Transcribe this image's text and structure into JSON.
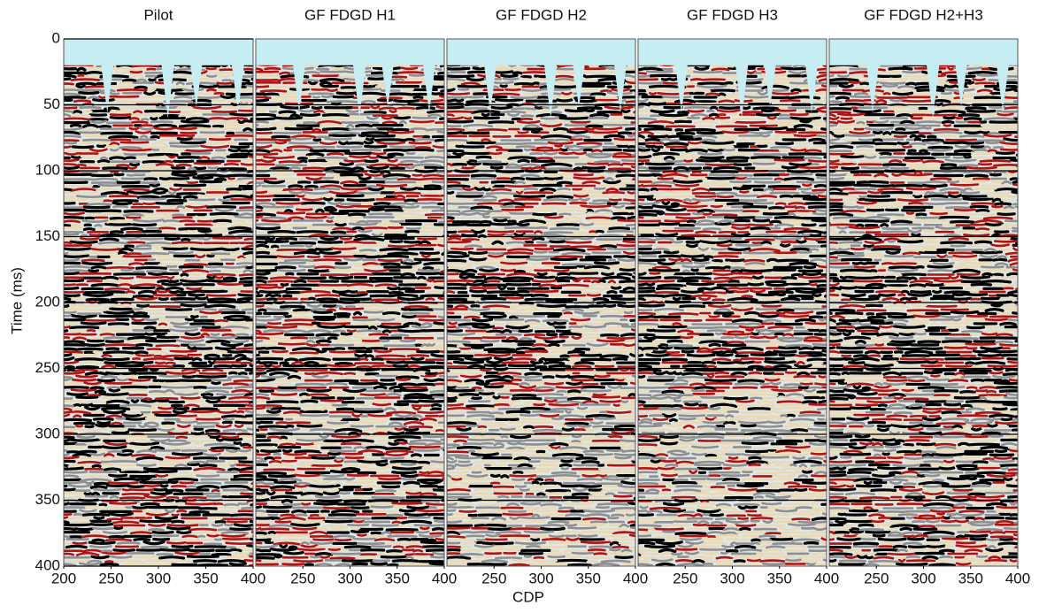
{
  "x_label": "CDP",
  "y_label": "Time (ms)",
  "chart_data": [
    {
      "type": "seismic",
      "title": "Pilot",
      "xlim": [
        200,
        400
      ],
      "xticks": [
        200,
        250,
        300,
        350,
        400
      ],
      "ylim": [
        400,
        0
      ],
      "yticks": [
        0,
        50,
        100,
        150,
        200,
        250,
        300,
        350,
        400
      ],
      "grid": true
    },
    {
      "type": "seismic",
      "title": "GF FDGD H1",
      "xlim": [
        200,
        400
      ],
      "xticks": [
        250,
        300,
        350,
        400
      ],
      "ylim": [
        400,
        0
      ],
      "yticks": [
        50,
        100,
        150,
        200,
        250,
        300,
        350
      ],
      "grid": true
    },
    {
      "type": "seismic",
      "title": "GF FDGD H2",
      "xlim": [
        200,
        400
      ],
      "xticks": [
        250,
        300,
        350,
        400
      ],
      "ylim": [
        400,
        0
      ],
      "yticks": [
        50,
        100,
        150,
        200,
        250,
        300,
        350
      ],
      "grid": true
    },
    {
      "type": "seismic",
      "title": "GF FDGD H3",
      "xlim": [
        200,
        400
      ],
      "xticks": [
        250,
        300,
        350,
        400
      ],
      "ylim": [
        400,
        0
      ],
      "yticks": [
        50,
        100,
        150,
        200,
        250,
        300,
        350
      ],
      "grid": true
    },
    {
      "type": "seismic",
      "title": "GF FDGD H2+H3",
      "xlim": [
        200,
        400
      ],
      "xticks": [
        250,
        300,
        350,
        400
      ],
      "ylim": [
        400,
        0
      ],
      "yticks": [
        50,
        100,
        150,
        200,
        250,
        300,
        350
      ],
      "grid": true
    }
  ]
}
